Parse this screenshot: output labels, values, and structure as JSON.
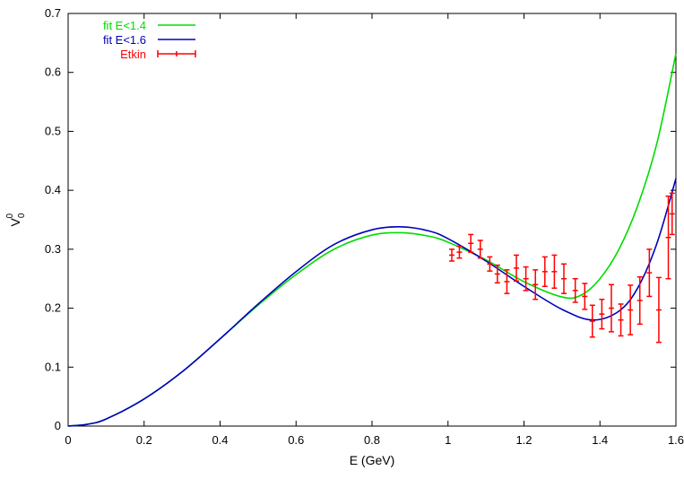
{
  "chart_data": {
    "type": "line",
    "xlabel": "E (GeV)",
    "ylabel": {
      "base": "V",
      "sub": "0",
      "sup": "0"
    },
    "xlim": [
      0,
      1.6
    ],
    "ylim": [
      0,
      0.7
    ],
    "x_ticks": [
      0,
      0.2,
      0.4,
      0.6,
      0.8,
      1,
      1.2,
      1.4,
      1.6
    ],
    "x_tick_labels": [
      "0",
      "0.2",
      "0.4",
      "0.6",
      "0.8",
      "1",
      "1.2",
      "1.4",
      "1.6"
    ],
    "y_ticks": [
      0,
      0.1,
      0.2,
      0.3,
      0.4,
      0.5,
      0.6,
      0.7
    ],
    "y_tick_labels": [
      "0",
      "0.1",
      "0.2",
      "0.3",
      "0.4",
      "0.5",
      "0.6",
      "0.7"
    ],
    "legend_position": "top-left",
    "series": [
      {
        "name": "fit E<1.4",
        "kind": "line",
        "color": "#00dd00",
        "x": [
          0,
          0.05,
          0.1,
          0.2,
          0.3,
          0.4,
          0.5,
          0.6,
          0.7,
          0.8,
          0.88,
          0.95,
          1.0,
          1.1,
          1.2,
          1.3,
          1.35,
          1.4,
          1.45,
          1.5,
          1.55,
          1.6
        ],
        "y": [
          0,
          0.003,
          0.012,
          0.046,
          0.092,
          0.148,
          0.205,
          0.257,
          0.3,
          0.324,
          0.328,
          0.322,
          0.312,
          0.282,
          0.245,
          0.219,
          0.222,
          0.25,
          0.3,
          0.375,
          0.48,
          0.632
        ]
      },
      {
        "name": "fit E<1.6",
        "kind": "line",
        "color": "#0000bb",
        "x": [
          0,
          0.05,
          0.1,
          0.2,
          0.3,
          0.4,
          0.5,
          0.6,
          0.7,
          0.8,
          0.88,
          0.95,
          1.0,
          1.1,
          1.2,
          1.3,
          1.38,
          1.45,
          1.5,
          1.55,
          1.6
        ],
        "y": [
          0,
          0.003,
          0.012,
          0.046,
          0.092,
          0.148,
          0.207,
          0.262,
          0.308,
          0.333,
          0.338,
          0.331,
          0.318,
          0.28,
          0.237,
          0.198,
          0.18,
          0.195,
          0.235,
          0.31,
          0.42
        ]
      },
      {
        "name": "Etkin",
        "kind": "errorbar",
        "color": "#ff0000",
        "points": [
          {
            "x": 1.01,
            "y": 0.29,
            "err": 0.01
          },
          {
            "x": 1.03,
            "y": 0.295,
            "err": 0.01
          },
          {
            "x": 1.06,
            "y": 0.31,
            "err": 0.015
          },
          {
            "x": 1.085,
            "y": 0.3,
            "err": 0.015
          },
          {
            "x": 1.11,
            "y": 0.275,
            "err": 0.012
          },
          {
            "x": 1.13,
            "y": 0.258,
            "err": 0.015
          },
          {
            "x": 1.155,
            "y": 0.245,
            "err": 0.02
          },
          {
            "x": 1.18,
            "y": 0.268,
            "err": 0.022
          },
          {
            "x": 1.205,
            "y": 0.25,
            "err": 0.02
          },
          {
            "x": 1.23,
            "y": 0.24,
            "err": 0.025
          },
          {
            "x": 1.255,
            "y": 0.262,
            "err": 0.025
          },
          {
            "x": 1.28,
            "y": 0.262,
            "err": 0.028
          },
          {
            "x": 1.305,
            "y": 0.25,
            "err": 0.025
          },
          {
            "x": 1.335,
            "y": 0.23,
            "err": 0.02
          },
          {
            "x": 1.36,
            "y": 0.22,
            "err": 0.022
          },
          {
            "x": 1.38,
            "y": 0.178,
            "err": 0.027
          },
          {
            "x": 1.405,
            "y": 0.19,
            "err": 0.025
          },
          {
            "x": 1.43,
            "y": 0.2,
            "err": 0.04
          },
          {
            "x": 1.455,
            "y": 0.18,
            "err": 0.027
          },
          {
            "x": 1.48,
            "y": 0.197,
            "err": 0.042
          },
          {
            "x": 1.505,
            "y": 0.213,
            "err": 0.04
          },
          {
            "x": 1.53,
            "y": 0.26,
            "err": 0.04
          },
          {
            "x": 1.555,
            "y": 0.197,
            "err": 0.055
          },
          {
            "x": 1.58,
            "y": 0.32,
            "err": 0.07
          },
          {
            "x": 1.59,
            "y": 0.36,
            "err": 0.035
          }
        ]
      }
    ]
  }
}
